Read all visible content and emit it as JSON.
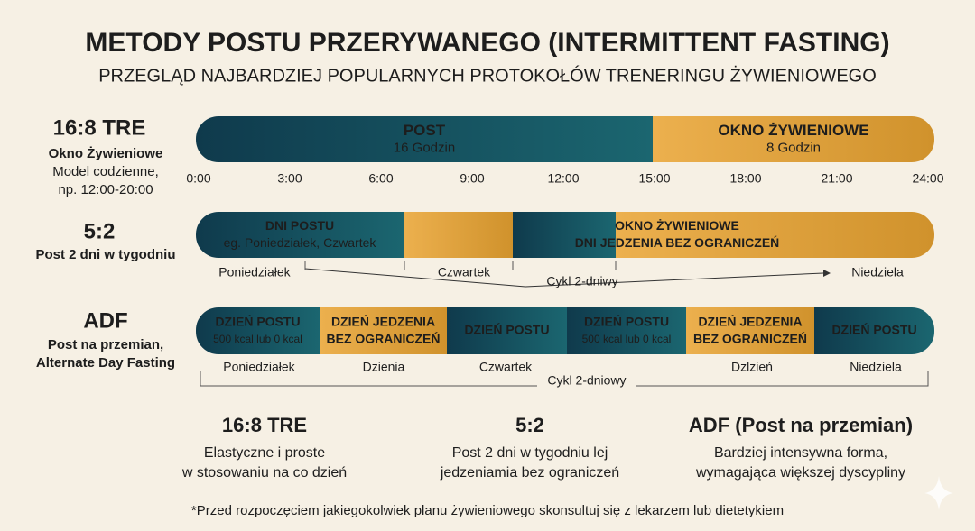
{
  "header": {
    "title": "METODY POSTU PRZERYWANEGO (INTERMITTENT FASTING)",
    "subtitle": "PRZEGLĄD NAJBARDZIEJ POPULARNYCH PROTOKOŁÓW TRENERINGU ŻYWIENIOWEGO"
  },
  "tre": {
    "name": "16:8 TRE",
    "subtitle": "Okno Żywieniowe",
    "description": [
      "Model codzienne,",
      "np. 12:00-20:00"
    ],
    "segments": [
      {
        "lines": [
          "POST",
          "16 Godzin"
        ]
      },
      {
        "lines": [
          "OKNO ŻYWIENIOWE",
          "8 Godzin"
        ]
      }
    ],
    "times": [
      "0:00",
      "3:00",
      "6:00",
      "9:00",
      "12:00",
      "15:00",
      "18:00",
      "21:00",
      "24:00"
    ]
  },
  "five_two": {
    "name": "5:2",
    "subtitle": "Post 2 dni w tygodniu",
    "segments": [
      {
        "lines": [
          "DNI POSTU",
          "eg. Poniedziałek, Czwartek"
        ]
      },
      {
        "lines": [
          "OKNO ŻYWIENIOWE",
          "DNI JEDZENIA BEZ OGRANICZEŃ"
        ]
      }
    ],
    "days": [
      "Poniedziałek",
      "Czwartek",
      "Niedziela"
    ],
    "cycle": "Cykl 2-dniwy"
  },
  "adf": {
    "name": "ADF",
    "subtitle": [
      "Post na przemian,",
      "Alternate Day Fasting"
    ],
    "segments": [
      {
        "lines": [
          "DZIEŃ POSTU",
          "500 kcal lub 0 kcal"
        ]
      },
      {
        "lines": [
          "DZIEŃ JEDZENIA",
          "BEZ OGRANICZEŃ"
        ]
      },
      {
        "lines": [
          "DZIEŃ POSTU"
        ]
      },
      {
        "lines": [
          "DZIEŃ POSTU",
          "500 kcal lub 0 kcal"
        ]
      },
      {
        "lines": [
          "DZIEŃ JEDZENIA",
          "BEZ OGRANICZEŃ"
        ]
      },
      {
        "lines": [
          "DZIEŃ POSTU"
        ]
      }
    ],
    "days": [
      "Poniedziałek",
      "Dzienia",
      "Czwartek",
      "Dzlzień",
      "Niedziela"
    ],
    "cycle": "Cykl 2-dniowy"
  },
  "summary": [
    {
      "title": "16:8 TRE",
      "lines": [
        "Elastyczne i proste",
        "w stosowaniu na co dzień"
      ]
    },
    {
      "title": "5:2",
      "lines": [
        "Post 2 dni w tygodniu lej",
        "jedzeniamia bez ograniczeń"
      ]
    },
    {
      "title": "ADF (Post na przemian)",
      "lines": [
        "Bardziej intensywna forma,",
        "wymagająca większej dyscypliny"
      ]
    }
  ],
  "footnote": "*Przed rozpoczęciem jakiegokolwiek planu żywieniowego skonsultuj się z lekarzem lub dietetykiem"
}
